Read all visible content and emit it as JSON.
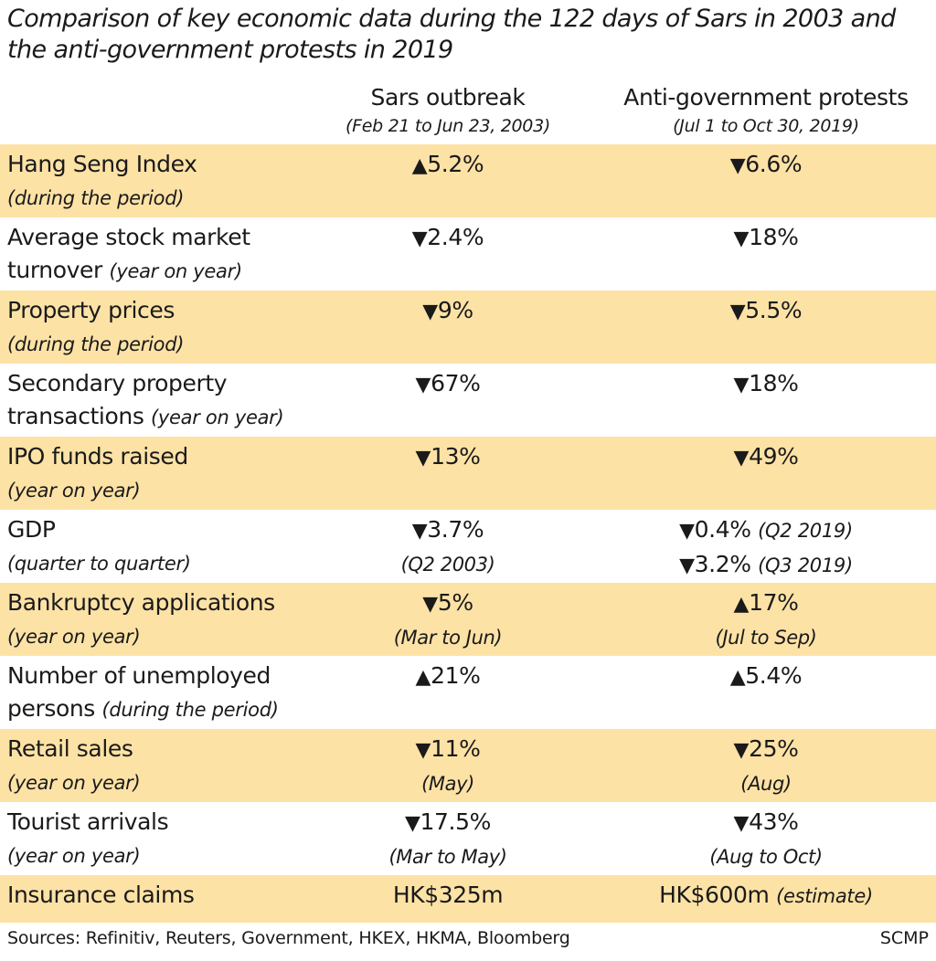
{
  "title": "Comparison of key economic data during the 122 days of Sars in 2003 and the anti-government protests in 2019",
  "columns": [
    {
      "label": "Sars outbreak",
      "period": "(Feb 21 to Jun 23, 2003)"
    },
    {
      "label": "Anti-government protests",
      "period": "(Jul 1 to Oct 30, 2019)"
    }
  ],
  "colors": {
    "shade": "#fde2a6",
    "text": "#1a1a1a"
  },
  "chart_data": {
    "type": "table",
    "rows": [
      {
        "label1": "Hang Seng Index",
        "label1_note": "",
        "label2": "",
        "label2_note": "(during the period)",
        "sars": {
          "lines": [
            {
              "dir": "up",
              "value": "5.2%",
              "note": ""
            }
          ],
          "sub": ""
        },
        "protests": {
          "lines": [
            {
              "dir": "down",
              "value": "6.6%",
              "note": ""
            }
          ],
          "sub": ""
        }
      },
      {
        "label1": "Average stock market",
        "label1_note": "",
        "label2": "turnover ",
        "label2_note": "(year on year)",
        "sars": {
          "lines": [
            {
              "dir": "down",
              "value": "2.4%",
              "note": ""
            }
          ],
          "sub": ""
        },
        "protests": {
          "lines": [
            {
              "dir": "down",
              "value": "18%",
              "note": ""
            }
          ],
          "sub": ""
        }
      },
      {
        "label1": "Property prices",
        "label1_note": "",
        "label2": "",
        "label2_note": "(during the period)",
        "sars": {
          "lines": [
            {
              "dir": "down",
              "value": "9%",
              "note": ""
            }
          ],
          "sub": ""
        },
        "protests": {
          "lines": [
            {
              "dir": "down",
              "value": "5.5%",
              "note": ""
            }
          ],
          "sub": ""
        }
      },
      {
        "label1": "Secondary property",
        "label1_note": "",
        "label2": "transactions ",
        "label2_note": "(year on year)",
        "sars": {
          "lines": [
            {
              "dir": "down",
              "value": "67%",
              "note": ""
            }
          ],
          "sub": ""
        },
        "protests": {
          "lines": [
            {
              "dir": "down",
              "value": "18%",
              "note": ""
            }
          ],
          "sub": ""
        }
      },
      {
        "label1": "IPO funds raised",
        "label1_note": "",
        "label2": "",
        "label2_note": "(year on year)",
        "sars": {
          "lines": [
            {
              "dir": "down",
              "value": "13%",
              "note": ""
            }
          ],
          "sub": ""
        },
        "protests": {
          "lines": [
            {
              "dir": "down",
              "value": "49%",
              "note": ""
            }
          ],
          "sub": ""
        }
      },
      {
        "label1": "GDP",
        "label1_note": "",
        "label2": "",
        "label2_note": "(quarter to quarter)",
        "sars": {
          "lines": [
            {
              "dir": "down",
              "value": "3.7%",
              "note": ""
            }
          ],
          "sub": "(Q2 2003)"
        },
        "protests": {
          "lines": [
            {
              "dir": "down",
              "value": "0.4%",
              "note": "(Q2 2019)"
            },
            {
              "dir": "down",
              "value": "3.2%",
              "note": "(Q3 2019)"
            }
          ],
          "sub": ""
        }
      },
      {
        "label1": "Bankruptcy applications",
        "label1_note": "",
        "label2": "",
        "label2_note": "(year on year)",
        "sars": {
          "lines": [
            {
              "dir": "down",
              "value": "5%",
              "note": ""
            }
          ],
          "sub": "(Mar to Jun)"
        },
        "protests": {
          "lines": [
            {
              "dir": "up",
              "value": "17%",
              "note": ""
            }
          ],
          "sub": "(Jul to Sep)"
        }
      },
      {
        "label1": "Number of unemployed",
        "label1_note": "",
        "label2": "persons ",
        "label2_note": "(during the period)",
        "sars": {
          "lines": [
            {
              "dir": "up",
              "value": "21%",
              "note": ""
            }
          ],
          "sub": ""
        },
        "protests": {
          "lines": [
            {
              "dir": "up",
              "value": "5.4%",
              "note": ""
            }
          ],
          "sub": ""
        }
      },
      {
        "label1": "Retail sales",
        "label1_note": "",
        "label2": "",
        "label2_note": "(year on year)",
        "sars": {
          "lines": [
            {
              "dir": "down",
              "value": "11%",
              "note": ""
            }
          ],
          "sub": "(May)"
        },
        "protests": {
          "lines": [
            {
              "dir": "down",
              "value": "25%",
              "note": ""
            }
          ],
          "sub": "(Aug)"
        }
      },
      {
        "label1": "Tourist arrivals",
        "label1_note": "",
        "label2": "",
        "label2_note": "(year on year)",
        "sars": {
          "lines": [
            {
              "dir": "down",
              "value": "17.5%",
              "note": ""
            }
          ],
          "sub": "(Mar to May)"
        },
        "protests": {
          "lines": [
            {
              "dir": "down",
              "value": "43%",
              "note": ""
            }
          ],
          "sub": "(Aug to Oct)"
        }
      },
      {
        "label1": "Insurance claims",
        "label1_note": "",
        "label2": "",
        "label2_note": "",
        "sars": {
          "lines": [
            {
              "dir": "",
              "value": "HK$325m",
              "note": ""
            }
          ],
          "sub": ""
        },
        "protests": {
          "lines": [
            {
              "dir": "",
              "value": "HK$600m",
              "note": "(estimate)"
            }
          ],
          "sub": ""
        }
      }
    ]
  },
  "footer": {
    "sources": "Sources: Refinitiv, Reuters, Government, HKEX, HKMA, Bloomberg",
    "brand": "SCMP"
  }
}
